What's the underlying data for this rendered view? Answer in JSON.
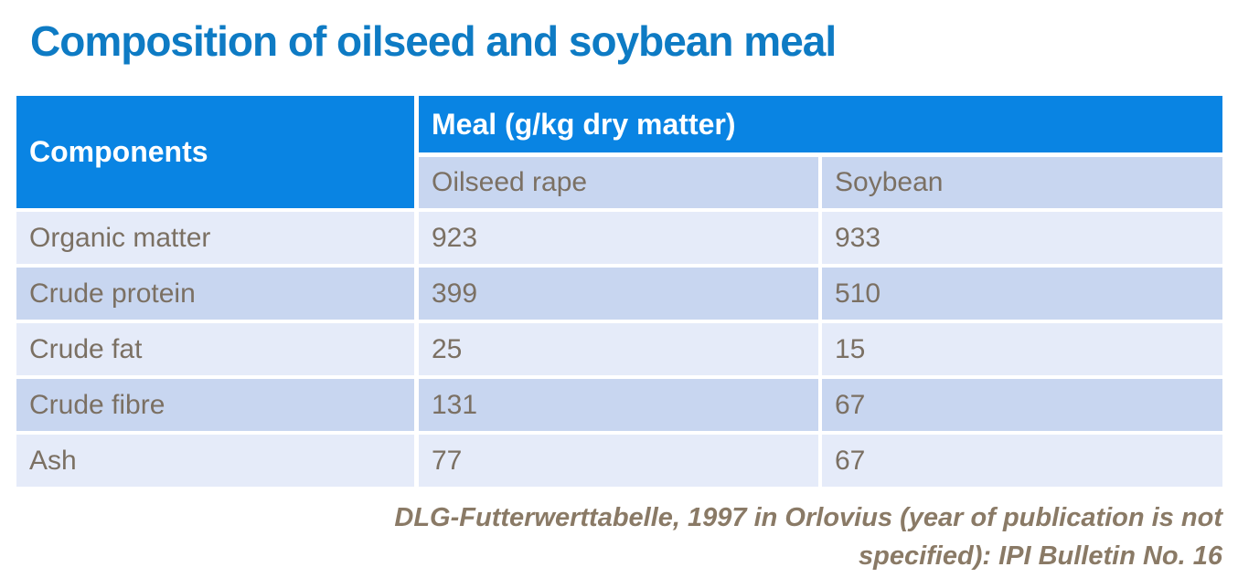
{
  "page": {
    "title": "Composition of oilseed and soybean meal"
  },
  "chart_data": {
    "type": "table",
    "title": "Composition of oilseed and soybean meal",
    "column_group": "Meal (g/kg dry matter)",
    "columns": [
      "Components",
      "Oilseed rape",
      "Soybean"
    ],
    "rows": [
      [
        "Organic matter",
        923,
        933
      ],
      [
        "Crude protein",
        399,
        510
      ],
      [
        "Crude fat",
        25,
        15
      ],
      [
        "Crude fibre",
        131,
        67
      ],
      [
        "Ash",
        77,
        67
      ]
    ],
    "source": "DLG-Futterwerttabelle, 1997 in Orlovius (year of publication is not specified): IPI Bulletin No. 16"
  },
  "citation": {
    "lines": [
      "DLG-Futterwerttabelle, 1997 in Orlovius (year of publication is not",
      "specified): IPI Bulletin No. 16"
    ]
  },
  "colors": {
    "title_blue": "#0E7BC4",
    "header_blue": "#0984E3",
    "row_light": "#E5EBF9",
    "row_dark": "#C8D6F0",
    "body_text": "#7B7063",
    "citation_text": "#8A7A66"
  }
}
